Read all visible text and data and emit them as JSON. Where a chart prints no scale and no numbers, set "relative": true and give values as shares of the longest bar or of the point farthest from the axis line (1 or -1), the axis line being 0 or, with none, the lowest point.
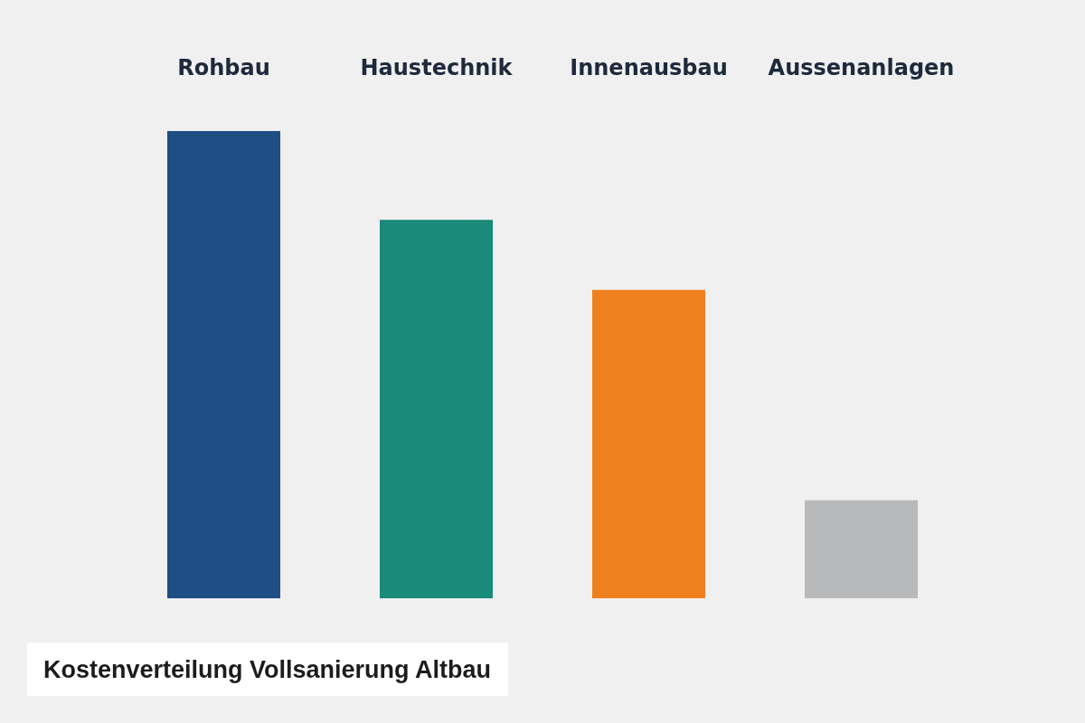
{
  "chart_data": {
    "type": "bar",
    "title": "Kostenverteilung Vollsanierung Altbau",
    "relative": true,
    "categories": [
      "Rohbau",
      "Haustechnik",
      "Innenausbau",
      "Aussenanlagen"
    ],
    "values": [
      1,
      0.81,
      0.66,
      0.21
    ],
    "colors": [
      "#1f4e85",
      "#1a8a7a",
      "#f07f1e",
      "#b8b9bb"
    ]
  }
}
